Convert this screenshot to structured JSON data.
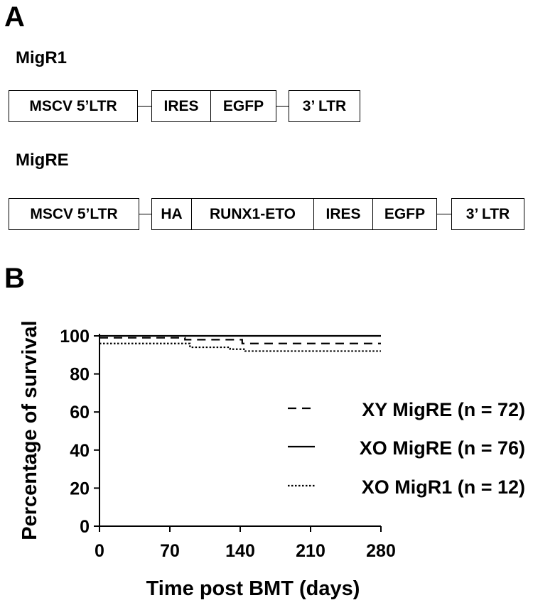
{
  "panel_a": {
    "letter": "A",
    "constructs": [
      {
        "name": "MigR1",
        "elements": [
          "MSCV 5’LTR",
          "IRES",
          "EGFP",
          "3’ LTR"
        ]
      },
      {
        "name": "MigRE",
        "elements": [
          "MSCV 5’LTR",
          "HA",
          "RUNX1-ETO",
          "IRES",
          "EGFP",
          "3’ LTR"
        ]
      }
    ]
  },
  "panel_b": {
    "letter": "B"
  },
  "chart_data": {
    "type": "line",
    "title": "",
    "xlabel": "Time post BMT (days)",
    "ylabel": "Percentage of survival",
    "xlim": [
      0,
      280
    ],
    "ylim": [
      0,
      100
    ],
    "xticks": [
      0,
      70,
      140,
      210,
      280
    ],
    "yticks": [
      0,
      20,
      40,
      60,
      80,
      100
    ],
    "grid": false,
    "legend_position": "right",
    "series": [
      {
        "name": "XY MigRE (n = 72)",
        "style": "dashed",
        "x": [
          0,
          85,
          85,
          142,
          142,
          280
        ],
        "y": [
          99,
          99,
          98,
          98,
          96,
          96
        ]
      },
      {
        "name": "XO MigRE (n = 76)",
        "style": "solid",
        "x": [
          0,
          280
        ],
        "y": [
          100,
          100
        ]
      },
      {
        "name": "XO MigR1 (n = 12)",
        "style": "dotted",
        "x": [
          0,
          90,
          90,
          130,
          130,
          145,
          145,
          280
        ],
        "y": [
          96,
          96,
          94,
          94,
          93,
          93,
          92,
          92
        ]
      }
    ]
  }
}
